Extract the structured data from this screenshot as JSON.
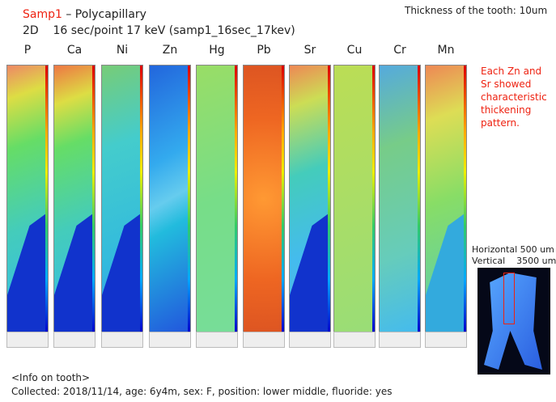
{
  "header": {
    "sample": "Samp1",
    "method": " – Polycapillary",
    "conditions": "2D    16 sec/point 17 keV (samp1_16sec_17kev)",
    "thickness": "Thickness of the tooth: 10um"
  },
  "elements": [
    "P",
    "Ca",
    "Ni",
    "Zn",
    "Hg",
    "Pb",
    "Sr",
    "Cu",
    "Cr",
    "Mn"
  ],
  "note": [
    "Each Zn and",
    "Sr showed",
    "characteristic",
    "thickening",
    "pattern."
  ],
  "scale": [
    "Horizontal 500 um",
    "Vertical    3500 um"
  ],
  "info": {
    "title": "<Info on tooth>",
    "details": "Collected: 2018/11/14, age: 6y4m, sex: F, position: lower middle, fluoride: yes"
  }
}
